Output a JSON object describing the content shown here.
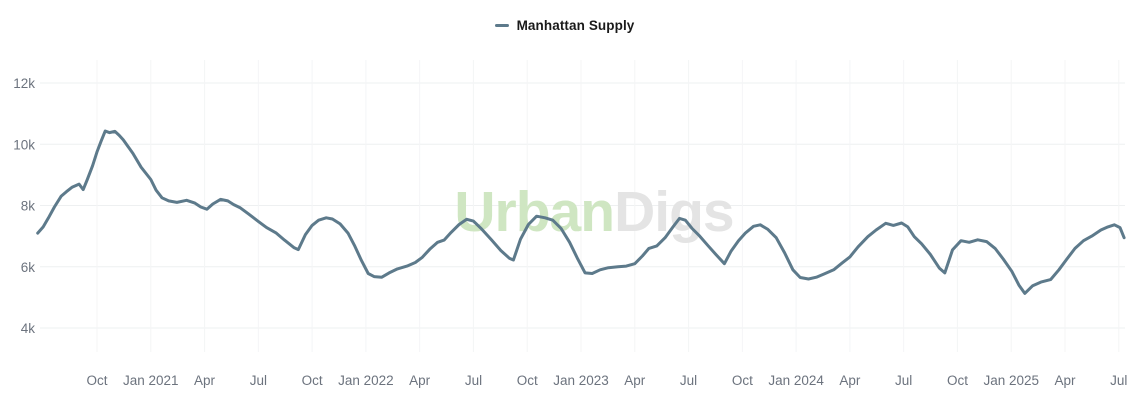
{
  "legend": {
    "label": "Manhattan Supply",
    "marker_color": "#5d7a8b"
  },
  "watermark": {
    "part1": "Urban",
    "part2": "Digs",
    "color1": "#cfe6c2",
    "color2": "#e4e4e4"
  },
  "colors": {
    "line": "#5d7a8b",
    "axis_label": "#6c737e",
    "gridline_horizontal": "#eef0f1",
    "gridline_vertical": "#f4f5f6",
    "background": "#ffffff"
  },
  "chart_data": {
    "type": "line",
    "title": "",
    "xlabel": "",
    "ylabel": "",
    "grid": true,
    "legend_position": "top-center",
    "ylim": [
      3300,
      12800
    ],
    "yticks": [
      {
        "value": 4000,
        "label": "4k"
      },
      {
        "value": 6000,
        "label": "6k"
      },
      {
        "value": 8000,
        "label": "8k"
      },
      {
        "value": 10000,
        "label": "10k"
      },
      {
        "value": 12000,
        "label": "12k"
      }
    ],
    "xticks": [
      {
        "date": "2020-10-01",
        "label": "Oct"
      },
      {
        "date": "2021-01-01",
        "label": "Jan 2021"
      },
      {
        "date": "2021-04-01",
        "label": "Apr"
      },
      {
        "date": "2021-07-01",
        "label": "Jul"
      },
      {
        "date": "2021-10-01",
        "label": "Oct"
      },
      {
        "date": "2022-01-01",
        "label": "Jan 2022"
      },
      {
        "date": "2022-04-01",
        "label": "Apr"
      },
      {
        "date": "2022-07-01",
        "label": "Jul"
      },
      {
        "date": "2022-10-01",
        "label": "Oct"
      },
      {
        "date": "2023-01-01",
        "label": "Jan 2023"
      },
      {
        "date": "2023-04-01",
        "label": "Apr"
      },
      {
        "date": "2023-07-01",
        "label": "Jul"
      },
      {
        "date": "2023-10-01",
        "label": "Oct"
      },
      {
        "date": "2024-01-01",
        "label": "Jan 2024"
      },
      {
        "date": "2024-04-01",
        "label": "Apr"
      },
      {
        "date": "2024-07-01",
        "label": "Jul"
      },
      {
        "date": "2024-10-01",
        "label": "Oct"
      },
      {
        "date": "2025-01-01",
        "label": "Jan 2025"
      },
      {
        "date": "2025-04-01",
        "label": "Apr"
      },
      {
        "date": "2025-07-01",
        "label": "Jul"
      }
    ],
    "series": [
      {
        "name": "Manhattan Supply",
        "color": "#5d7a8b",
        "points": [
          [
            "2020-06-22",
            7100
          ],
          [
            "2020-07-01",
            7300
          ],
          [
            "2020-07-10",
            7600
          ],
          [
            "2020-07-20",
            7950
          ],
          [
            "2020-08-01",
            8300
          ],
          [
            "2020-08-10",
            8450
          ],
          [
            "2020-08-20",
            8600
          ],
          [
            "2020-09-01",
            8700
          ],
          [
            "2020-09-08",
            8520
          ],
          [
            "2020-09-15",
            8850
          ],
          [
            "2020-09-24",
            9300
          ],
          [
            "2020-10-01",
            9750
          ],
          [
            "2020-10-08",
            10100
          ],
          [
            "2020-10-15",
            10430
          ],
          [
            "2020-10-22",
            10380
          ],
          [
            "2020-11-01",
            10420
          ],
          [
            "2020-11-08",
            10300
          ],
          [
            "2020-11-15",
            10150
          ],
          [
            "2020-12-01",
            9700
          ],
          [
            "2020-12-15",
            9250
          ],
          [
            "2021-01-01",
            8850
          ],
          [
            "2021-01-10",
            8500
          ],
          [
            "2021-01-20",
            8250
          ],
          [
            "2021-02-01",
            8150
          ],
          [
            "2021-02-15",
            8100
          ],
          [
            "2021-03-01",
            8170
          ],
          [
            "2021-03-15",
            8080
          ],
          [
            "2021-03-25",
            7950
          ],
          [
            "2021-04-05",
            7880
          ],
          [
            "2021-04-15",
            8050
          ],
          [
            "2021-04-28",
            8200
          ],
          [
            "2021-05-10",
            8150
          ],
          [
            "2021-05-20",
            8030
          ],
          [
            "2021-06-01",
            7920
          ],
          [
            "2021-06-15",
            7720
          ],
          [
            "2021-07-01",
            7480
          ],
          [
            "2021-07-15",
            7280
          ],
          [
            "2021-08-01",
            7100
          ],
          [
            "2021-08-15",
            6870
          ],
          [
            "2021-09-01",
            6620
          ],
          [
            "2021-09-08",
            6560
          ],
          [
            "2021-09-20",
            7050
          ],
          [
            "2021-10-01",
            7350
          ],
          [
            "2021-10-12",
            7520
          ],
          [
            "2021-10-25",
            7600
          ],
          [
            "2021-11-05",
            7560
          ],
          [
            "2021-11-18",
            7400
          ],
          [
            "2021-12-01",
            7100
          ],
          [
            "2021-12-12",
            6700
          ],
          [
            "2021-12-24",
            6200
          ],
          [
            "2022-01-05",
            5780
          ],
          [
            "2022-01-15",
            5680
          ],
          [
            "2022-01-28",
            5660
          ],
          [
            "2022-02-10",
            5800
          ],
          [
            "2022-02-24",
            5930
          ],
          [
            "2022-03-10",
            6020
          ],
          [
            "2022-03-24",
            6140
          ],
          [
            "2022-04-05",
            6300
          ],
          [
            "2022-04-18",
            6570
          ],
          [
            "2022-05-01",
            6800
          ],
          [
            "2022-05-12",
            6870
          ],
          [
            "2022-05-24",
            7120
          ],
          [
            "2022-06-07",
            7380
          ],
          [
            "2022-06-20",
            7550
          ],
          [
            "2022-07-01",
            7490
          ],
          [
            "2022-07-15",
            7230
          ],
          [
            "2022-08-01",
            6880
          ],
          [
            "2022-08-17",
            6530
          ],
          [
            "2022-09-01",
            6280
          ],
          [
            "2022-09-08",
            6220
          ],
          [
            "2022-09-20",
            6900
          ],
          [
            "2022-10-03",
            7380
          ],
          [
            "2022-10-17",
            7650
          ],
          [
            "2022-11-01",
            7600
          ],
          [
            "2022-11-14",
            7520
          ],
          [
            "2022-11-28",
            7250
          ],
          [
            "2022-12-12",
            6800
          ],
          [
            "2022-12-26",
            6250
          ],
          [
            "2023-01-08",
            5800
          ],
          [
            "2023-01-20",
            5780
          ],
          [
            "2023-02-03",
            5900
          ],
          [
            "2023-02-17",
            5970
          ],
          [
            "2023-03-03",
            6000
          ],
          [
            "2023-03-17",
            6020
          ],
          [
            "2023-04-01",
            6100
          ],
          [
            "2023-04-14",
            6350
          ],
          [
            "2023-04-25",
            6600
          ],
          [
            "2023-05-08",
            6680
          ],
          [
            "2023-05-22",
            6950
          ],
          [
            "2023-06-05",
            7300
          ],
          [
            "2023-06-16",
            7580
          ],
          [
            "2023-06-26",
            7520
          ],
          [
            "2023-07-07",
            7250
          ],
          [
            "2023-07-20",
            7000
          ],
          [
            "2023-08-03",
            6700
          ],
          [
            "2023-08-17",
            6400
          ],
          [
            "2023-09-01",
            6100
          ],
          [
            "2023-09-12",
            6500
          ],
          [
            "2023-09-25",
            6850
          ],
          [
            "2023-10-06",
            7100
          ],
          [
            "2023-10-20",
            7320
          ],
          [
            "2023-11-01",
            7370
          ],
          [
            "2023-11-14",
            7220
          ],
          [
            "2023-11-28",
            6950
          ],
          [
            "2023-12-12",
            6450
          ],
          [
            "2023-12-26",
            5900
          ],
          [
            "2024-01-08",
            5650
          ],
          [
            "2024-01-22",
            5600
          ],
          [
            "2024-02-05",
            5660
          ],
          [
            "2024-02-19",
            5770
          ],
          [
            "2024-03-04",
            5900
          ],
          [
            "2024-03-18",
            6120
          ],
          [
            "2024-04-01",
            6320
          ],
          [
            "2024-04-15",
            6650
          ],
          [
            "2024-05-01",
            6980
          ],
          [
            "2024-05-15",
            7200
          ],
          [
            "2024-06-01",
            7420
          ],
          [
            "2024-06-14",
            7350
          ],
          [
            "2024-06-28",
            7430
          ],
          [
            "2024-07-08",
            7300
          ],
          [
            "2024-07-19",
            6980
          ],
          [
            "2024-08-01",
            6750
          ],
          [
            "2024-08-16",
            6400
          ],
          [
            "2024-09-01",
            5950
          ],
          [
            "2024-09-10",
            5800
          ],
          [
            "2024-09-23",
            6550
          ],
          [
            "2024-10-07",
            6850
          ],
          [
            "2024-10-21",
            6800
          ],
          [
            "2024-11-05",
            6880
          ],
          [
            "2024-11-20",
            6820
          ],
          [
            "2024-12-04",
            6600
          ],
          [
            "2024-12-18",
            6250
          ],
          [
            "2025-01-02",
            5850
          ],
          [
            "2025-01-14",
            5400
          ],
          [
            "2025-01-24",
            5130
          ],
          [
            "2025-02-07",
            5380
          ],
          [
            "2025-02-21",
            5500
          ],
          [
            "2025-03-07",
            5580
          ],
          [
            "2025-03-21",
            5900
          ],
          [
            "2025-04-04",
            6250
          ],
          [
            "2025-04-18",
            6600
          ],
          [
            "2025-05-02",
            6850
          ],
          [
            "2025-05-16",
            7000
          ],
          [
            "2025-06-01",
            7200
          ],
          [
            "2025-06-13",
            7300
          ],
          [
            "2025-06-24",
            7370
          ],
          [
            "2025-07-03",
            7280
          ],
          [
            "2025-07-10",
            6950
          ]
        ]
      }
    ]
  }
}
